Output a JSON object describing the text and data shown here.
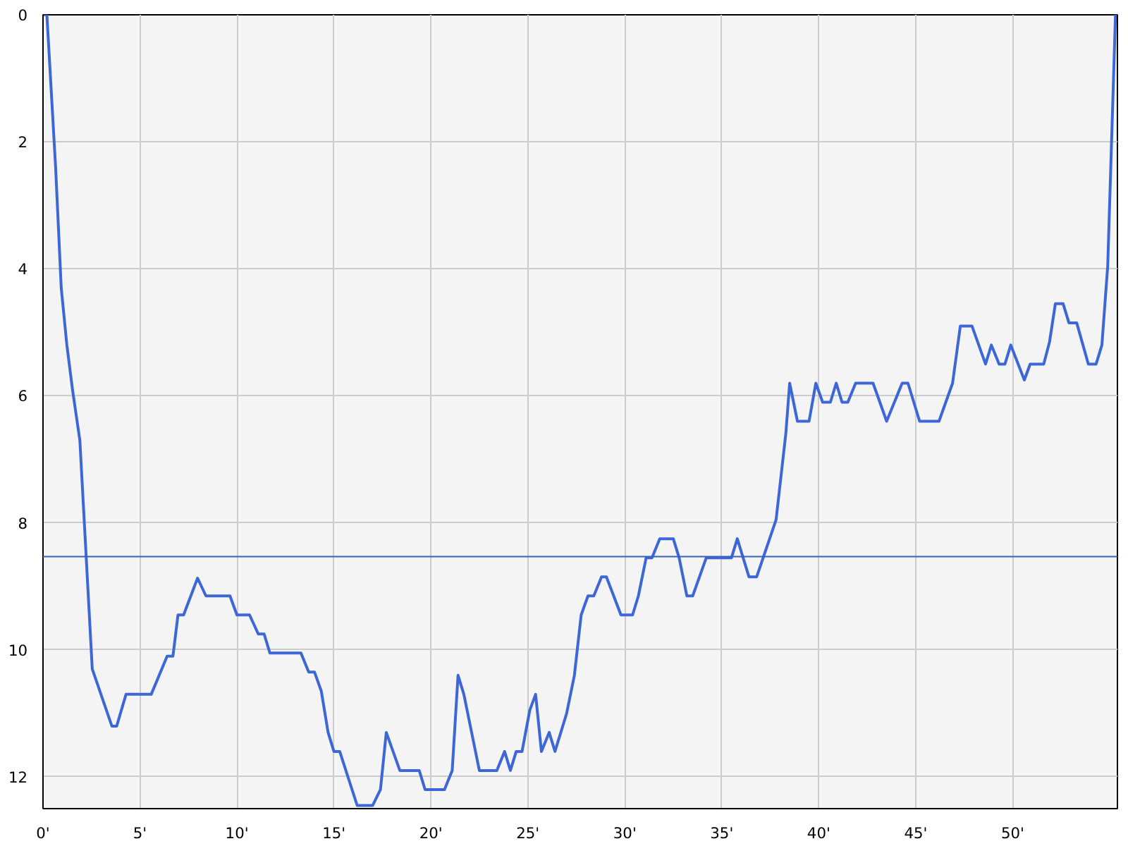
{
  "chart_data": {
    "type": "line",
    "xlim": [
      0,
      55.4
    ],
    "ylim": [
      12.5,
      0
    ],
    "xticks": [
      {
        "value": 0,
        "label": "0'"
      },
      {
        "value": 5,
        "label": "5'"
      },
      {
        "value": 10,
        "label": "10'"
      },
      {
        "value": 15,
        "label": "15'"
      },
      {
        "value": 20,
        "label": "20'"
      },
      {
        "value": 25,
        "label": "25'"
      },
      {
        "value": 30,
        "label": "30'"
      },
      {
        "value": 35,
        "label": "35'"
      },
      {
        "value": 40,
        "label": "40'"
      },
      {
        "value": 45,
        "label": "45'"
      },
      {
        "value": 50,
        "label": "50'"
      }
    ],
    "yticks": [
      0,
      2,
      4,
      6,
      8,
      10,
      12
    ],
    "grid": true,
    "marker": "none",
    "line_style": "solid",
    "ref_lines": [
      {
        "axis": "y",
        "value": 8.53,
        "color": "#3a5fbf"
      }
    ],
    "series": [
      {
        "color": "#3d67d6",
        "x": [
          0,
          0.2,
          0.65,
          0.94,
          1.23,
          1.52,
          1.9,
          2.54,
          3.55,
          3.8,
          4.28,
          5.58,
          6.4,
          6.7,
          6.96,
          7.25,
          7.97,
          8.4,
          9.64,
          10,
          10.65,
          11.1,
          11.4,
          11.7,
          13.3,
          13.7,
          14,
          14.35,
          14.7,
          15,
          15.3,
          16.2,
          17,
          17.4,
          17.7,
          18.4,
          19.4,
          19.7,
          20.7,
          21.1,
          21.4,
          21.7,
          22.5,
          23.4,
          23.8,
          24.1,
          24.4,
          24.7,
          25.1,
          25.4,
          25.7,
          26.1,
          26.4,
          27,
          27.4,
          27.75,
          28.1,
          28.4,
          28.8,
          29.05,
          29.8,
          30.4,
          30.7,
          31.1,
          31.4,
          31.8,
          32.5,
          32.8,
          33.2,
          33.5,
          34.2,
          35.5,
          35.8,
          36.4,
          36.8,
          37.8,
          38.3,
          38.5,
          38.9,
          39.5,
          39.85,
          40.2,
          40.6,
          40.9,
          41.2,
          41.5,
          41.9,
          42.8,
          43.5,
          44.3,
          44.6,
          45.2,
          46.2,
          46.9,
          47.3,
          47.9,
          48.6,
          48.9,
          49.3,
          49.6,
          49.9,
          50.6,
          50.9,
          51.6,
          51.9,
          52.2,
          52.6,
          52.9,
          53.3,
          53.9,
          54.3,
          54.6,
          54.9,
          55.3
        ],
        "values": [
          0,
          0,
          2.4,
          4.3,
          5.2,
          5.9,
          6.7,
          10.3,
          11.2,
          11.2,
          10.7,
          10.7,
          10.1,
          10.1,
          9.45,
          9.45,
          8.87,
          9.15,
          9.15,
          9.45,
          9.45,
          9.75,
          9.75,
          10.05,
          10.05,
          10.35,
          10.35,
          10.65,
          11.3,
          11.6,
          11.6,
          12.45,
          12.45,
          12.2,
          11.3,
          11.9,
          11.9,
          12.2,
          12.2,
          11.9,
          10.4,
          10.7,
          11.9,
          11.9,
          11.6,
          11.9,
          11.6,
          11.6,
          10.95,
          10.7,
          11.6,
          11.3,
          11.6,
          11,
          10.4,
          9.45,
          9.15,
          9.15,
          8.85,
          8.85,
          9.45,
          9.45,
          9.15,
          8.55,
          8.55,
          8.25,
          8.25,
          8.55,
          9.15,
          9.15,
          8.55,
          8.55,
          8.25,
          8.85,
          8.85,
          7.95,
          6.6,
          5.8,
          6.4,
          6.4,
          5.8,
          6.1,
          6.1,
          5.8,
          6.1,
          6.1,
          5.8,
          5.8,
          6.4,
          5.8,
          5.8,
          6.4,
          6.4,
          5.8,
          4.9,
          4.9,
          5.5,
          5.2,
          5.5,
          5.5,
          5.2,
          5.75,
          5.5,
          5.5,
          5.15,
          4.55,
          4.55,
          4.85,
          4.85,
          5.5,
          5.5,
          5.2,
          3.95,
          0
        ]
      }
    ]
  }
}
